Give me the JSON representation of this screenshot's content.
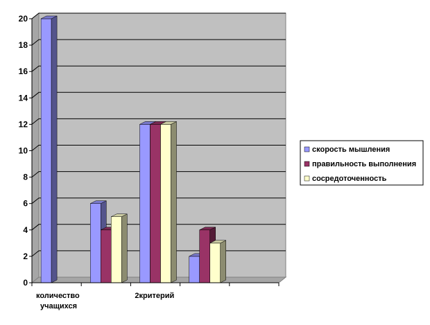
{
  "chart_data": {
    "type": "bar",
    "style": "3d-clustered-column",
    "categories": [
      "количество учащихся",
      "",
      "2критерий",
      "",
      ""
    ],
    "series": [
      {
        "name": "скорость мышления",
        "values": [
          20,
          6,
          12,
          2,
          0
        ],
        "color": "#9999ff"
      },
      {
        "name": "правильность выполнения",
        "values": [
          0,
          4,
          12,
          4,
          0
        ],
        "color": "#993366"
      },
      {
        "name": "сосредоточенность",
        "values": [
          0,
          5,
          12,
          3,
          0
        ],
        "color": "#ffffcc"
      }
    ],
    "ylim": [
      0,
      20
    ],
    "yticks": [
      0,
      2,
      4,
      6,
      8,
      10,
      12,
      14,
      16,
      18,
      20
    ],
    "grid": true,
    "plot_background": "#c0c0c0",
    "legend_position": "right"
  }
}
